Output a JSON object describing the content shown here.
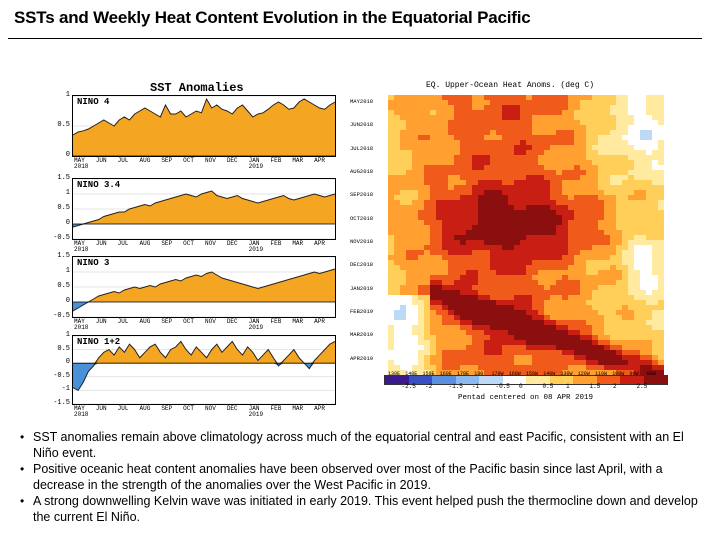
{
  "slide": {
    "title": "SSTs and Weekly Heat Content Evolution in the Equatorial Pacific"
  },
  "sst_panel": {
    "header": "SST Anomalies",
    "months": [
      "MAY",
      "JUN",
      "JUL",
      "AUG",
      "SEP",
      "OCT",
      "NOV",
      "DEC",
      "JAN",
      "FEB",
      "MAR",
      "APR"
    ],
    "year_start": "2018",
    "year_end": "2019",
    "regions": [
      {
        "name": "NINO 4",
        "ymin": 0,
        "ymax": 1,
        "ticks": [
          "1",
          "0.5",
          "0"
        ],
        "values": [
          0.35,
          0.4,
          0.42,
          0.45,
          0.5,
          0.55,
          0.6,
          0.55,
          0.5,
          0.6,
          0.65,
          0.6,
          0.7,
          0.75,
          0.8,
          0.75,
          0.7,
          0.65,
          0.85,
          0.7,
          0.7,
          0.75,
          0.65,
          0.7,
          0.75,
          0.72,
          0.95,
          0.8,
          0.85,
          0.78,
          0.75,
          0.7,
          0.8,
          0.85,
          0.75,
          0.65,
          0.7,
          0.72,
          0.78,
          0.85,
          0.9,
          0.85,
          0.78,
          0.8,
          0.9,
          0.95,
          0.9,
          0.85,
          0.8,
          0.78,
          0.85,
          0.9
        ]
      },
      {
        "name": "NINO 3.4",
        "ymin": -0.5,
        "ymax": 1.5,
        "ticks": [
          "1.5",
          "1",
          "0.5",
          "0",
          "-0.5"
        ],
        "values": [
          -0.1,
          -0.05,
          0.0,
          0.05,
          0.1,
          0.15,
          0.25,
          0.3,
          0.35,
          0.4,
          0.4,
          0.5,
          0.55,
          0.6,
          0.65,
          0.6,
          0.7,
          0.75,
          0.8,
          0.85,
          0.9,
          0.95,
          1.0,
          0.95,
          0.9,
          1.0,
          1.05,
          1.1,
          0.95,
          0.9,
          0.85,
          0.9,
          0.95,
          0.85,
          0.8,
          0.75,
          0.7,
          0.75,
          0.8,
          0.85,
          0.9,
          0.95,
          0.85,
          0.8,
          0.85,
          0.9,
          0.95,
          1.0,
          0.95,
          0.9,
          0.95,
          1.0
        ]
      },
      {
        "name": "NINO 3",
        "ymin": -0.5,
        "ymax": 1.5,
        "ticks": [
          "1.5",
          "1",
          "0.5",
          "0",
          "-0.5"
        ],
        "values": [
          -0.3,
          -0.2,
          -0.1,
          0.0,
          0.1,
          0.2,
          0.25,
          0.3,
          0.35,
          0.3,
          0.4,
          0.45,
          0.5,
          0.45,
          0.5,
          0.55,
          0.5,
          0.6,
          0.65,
          0.7,
          0.75,
          0.7,
          0.8,
          0.85,
          0.9,
          0.85,
          0.95,
          1.0,
          0.9,
          0.8,
          0.75,
          0.7,
          0.65,
          0.6,
          0.55,
          0.5,
          0.45,
          0.5,
          0.55,
          0.6,
          0.65,
          0.7,
          0.75,
          0.8,
          0.85,
          0.9,
          0.95,
          1.0,
          0.95,
          1.0,
          1.05,
          1.1
        ]
      },
      {
        "name": "NINO 1+2",
        "ymin": -1.5,
        "ymax": 1,
        "ticks": [
          "1",
          "0.5",
          "0",
          "-0.5",
          "-1",
          "-1.5"
        ],
        "values": [
          -0.9,
          -1.0,
          -0.7,
          -0.3,
          -0.1,
          0.2,
          0.4,
          0.5,
          0.3,
          0.6,
          0.4,
          0.7,
          0.5,
          0.2,
          0.4,
          0.6,
          0.7,
          0.4,
          0.2,
          0.5,
          0.6,
          0.8,
          0.5,
          0.3,
          0.6,
          0.4,
          0.2,
          0.5,
          0.7,
          0.4,
          0.6,
          0.8,
          0.5,
          0.3,
          0.6,
          0.4,
          0.1,
          0.3,
          0.5,
          0.2,
          -0.1,
          0.1,
          0.3,
          0.5,
          0.2,
          0.0,
          -0.2,
          0.1,
          0.3,
          0.5,
          0.7,
          0.8
        ]
      }
    ]
  },
  "heat_panel": {
    "header": "EQ. Upper-Ocean Heat Anoms. (deg C)",
    "dates": [
      "MAY2018",
      "JUN2018",
      "JUL2018",
      "AUG2018",
      "SEP2018",
      "OCT2018",
      "NOV2018",
      "DEC2018",
      "JAN2019",
      "FEB2019",
      "MAR2019",
      "APR2019"
    ],
    "lons": [
      "130E",
      "140E",
      "150E",
      "160E",
      "170E",
      "180",
      "170W",
      "160W",
      "150W",
      "140W",
      "130W",
      "120W",
      "110W",
      "100W",
      "90W",
      "80W"
    ],
    "cbar_ticks": [
      "-2.5",
      "-2",
      "-1.5",
      "-1",
      "-0.5",
      "0",
      "0.5",
      "1",
      "1.5",
      "2",
      "2.5"
    ],
    "caption": "Pentad centered on 08 APR 2019",
    "colors": [
      "#3a1a8c",
      "#3b4fc4",
      "#5b8fe0",
      "#8ab9f0",
      "#bcd9f5",
      "#ffffff",
      "#ffeaa0",
      "#ffcf5a",
      "#ffa030",
      "#f05a1a",
      "#c81e14",
      "#8c0f0f"
    ]
  },
  "bullets": [
    "SST anomalies remain above climatology across much of the equatorial central and east Pacific, consistent with an El Niño event.",
    "Positive oceanic heat content anomalies have been observed over most of the Pacific basin since last April, with a decrease in the strength of the anomalies over the West Pacific in 2019.",
    "A strong downwelling Kelvin wave was initiated in early 2019. This event helped push the thermocline down and develop the current El Niño."
  ]
}
